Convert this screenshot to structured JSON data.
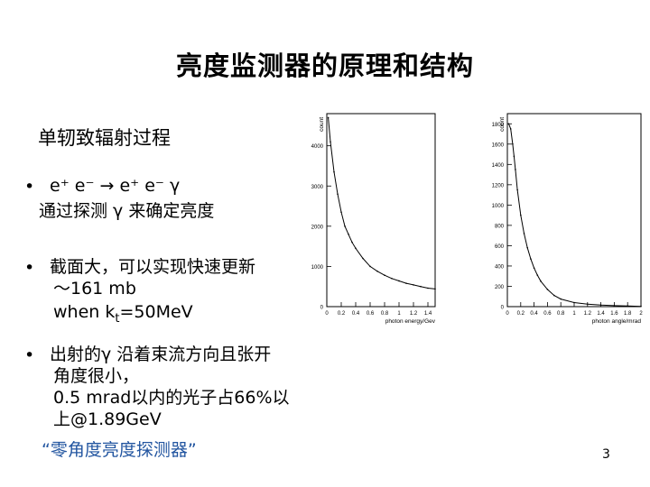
{
  "slide": {
    "title": "亮度监测器的原理和结构",
    "subtitle": "单轫致辐射过程",
    "bullet_symbol": "•",
    "bullets": [
      {
        "lines": [
          "e⁺ e⁻ → e⁺ e⁻ γ",
          "通过探测 γ 来确定亮度"
        ]
      },
      {
        "lines": [
          "截面大，可以实现快速更新",
          "～161 mb",
          "when k"
        ],
        "sub": "t",
        "after": "=50MeV"
      },
      {
        "lines": [
          "出射的γ 沿着束流方向且张开",
          "角度很小，",
          "0.5 mrad以内的光子占66%以",
          "上@1.89GeV"
        ]
      }
    ],
    "quote": "“零角度亮度探测器”",
    "page_number": "3"
  },
  "chart_data": [
    {
      "type": "line",
      "xlabel": "photon energy/Gev",
      "ylabel": "count",
      "xlim": [
        0,
        1.5
      ],
      "ylim": [
        0,
        4800
      ],
      "xticks": [
        "0",
        "0.2",
        "0.4",
        "0.6",
        "0.8",
        "1",
        "1.2",
        "1.4"
      ],
      "yticks": [
        "0",
        "1000",
        "2000",
        "3000",
        "4000"
      ],
      "x": [
        0.02,
        0.05,
        0.1,
        0.15,
        0.2,
        0.25,
        0.3,
        0.35,
        0.4,
        0.5,
        0.6,
        0.7,
        0.8,
        0.9,
        1.0,
        1.1,
        1.2,
        1.3,
        1.4,
        1.5
      ],
      "values": [
        4700,
        4100,
        3350,
        2800,
        2350,
        2000,
        1800,
        1600,
        1450,
        1200,
        1000,
        880,
        780,
        700,
        640,
        580,
        540,
        500,
        460,
        440
      ]
    },
    {
      "type": "line",
      "xlabel": "photon angle/mrad",
      "ylabel": "count",
      "xlim": [
        0,
        2
      ],
      "ylim": [
        0,
        1900
      ],
      "xticks": [
        "0",
        "0.2",
        "0.4",
        "0.6",
        "0.8",
        "1",
        "1.2",
        "1.4",
        "1.6",
        "1.8",
        "2"
      ],
      "yticks": [
        "0",
        "200",
        "400",
        "600",
        "800",
        "1000",
        "1200",
        "1400",
        "1600",
        "1800"
      ],
      "x": [
        0.02,
        0.05,
        0.08,
        0.1,
        0.12,
        0.15,
        0.2,
        0.25,
        0.3,
        0.35,
        0.4,
        0.45,
        0.5,
        0.6,
        0.7,
        0.8,
        1.0,
        1.2,
        1.4,
        1.6,
        1.8,
        2.0
      ],
      "values": [
        1800,
        1750,
        1600,
        1480,
        1350,
        1150,
        900,
        720,
        580,
        470,
        380,
        310,
        250,
        170,
        110,
        75,
        40,
        25,
        15,
        10,
        6,
        3
      ]
    }
  ]
}
